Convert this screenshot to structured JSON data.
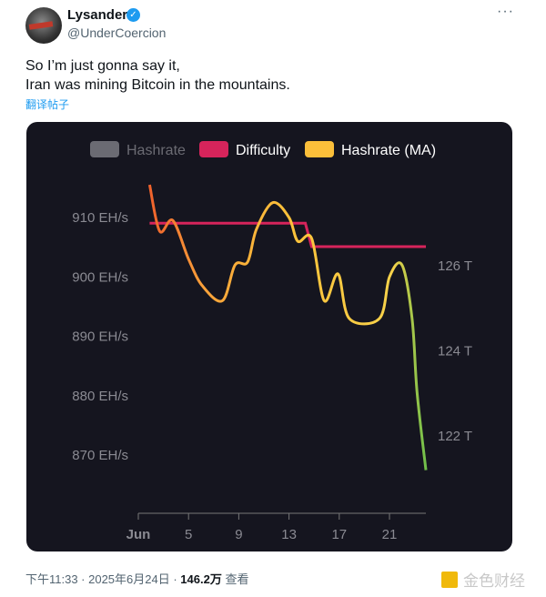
{
  "author": {
    "name": "Lysander",
    "handle": "@UnderCoercion"
  },
  "tweet": {
    "lines": [
      "So I’m just gonna say it,",
      "Iran was mining Bitcoin in the mountains."
    ],
    "translate": "翻译帖子"
  },
  "footer": {
    "time": "下午11:33 · 2025年6月24日 · ",
    "views": "146.2万",
    "views_label": " 查看"
  },
  "watermark": "金色财经",
  "chart_data": {
    "type": "line",
    "legend": [
      {
        "name": "Hashrate",
        "color": "#6b6b73"
      },
      {
        "name": "Difficulty",
        "color": "#d6245b"
      },
      {
        "name": "Hashrate (MA)",
        "color": "#fbbf3a"
      }
    ],
    "legend_placement": "top",
    "x_ticks": [
      {
        "day": 1,
        "label": "Jun"
      },
      {
        "day": 5,
        "label": "5"
      },
      {
        "day": 9,
        "label": "9"
      },
      {
        "day": 13,
        "label": "13"
      },
      {
        "day": 17,
        "label": "17"
      },
      {
        "day": 21,
        "label": "21"
      }
    ],
    "y_left": {
      "unit": "EH/s",
      "ticks": [
        {
          "v": 910,
          "label": "910 EH/s"
        },
        {
          "v": 900,
          "label": "900 EH/s"
        },
        {
          "v": 890,
          "label": "890 EH/s"
        },
        {
          "v": 880,
          "label": "880 EH/s"
        },
        {
          "v": 870,
          "label": "870 EH/s"
        }
      ]
    },
    "y_right": {
      "unit": "T",
      "ticks": [
        {
          "v": 126,
          "label": "126 T"
        },
        {
          "v": 124,
          "label": "124 T"
        },
        {
          "v": 122,
          "label": "122 T"
        }
      ]
    },
    "series": [
      {
        "name": "Difficulty",
        "axis": "right",
        "color": "#d6245b",
        "x": [
          1.9,
          14.3,
          14.8,
          23.9
        ],
        "y": [
          127.0,
          127.0,
          126.45,
          126.45
        ]
      },
      {
        "name": "Hashrate (MA)",
        "axis": "left",
        "x": [
          1.9,
          2.7,
          3.75,
          5,
          6.1,
          7.7,
          8.7,
          9.7,
          10.4,
          11.7,
          13,
          13.7,
          14.8,
          15.8,
          16.9,
          17.8,
          20.2,
          21,
          22,
          22.8,
          23.2,
          23.9
        ],
        "y": [
          915.5,
          907.7,
          909.5,
          903,
          898.5,
          896,
          902,
          902.5,
          908,
          912.5,
          910,
          906,
          906.5,
          896,
          900.5,
          893,
          893,
          900,
          902,
          893,
          880.5,
          867.5
        ]
      }
    ]
  }
}
